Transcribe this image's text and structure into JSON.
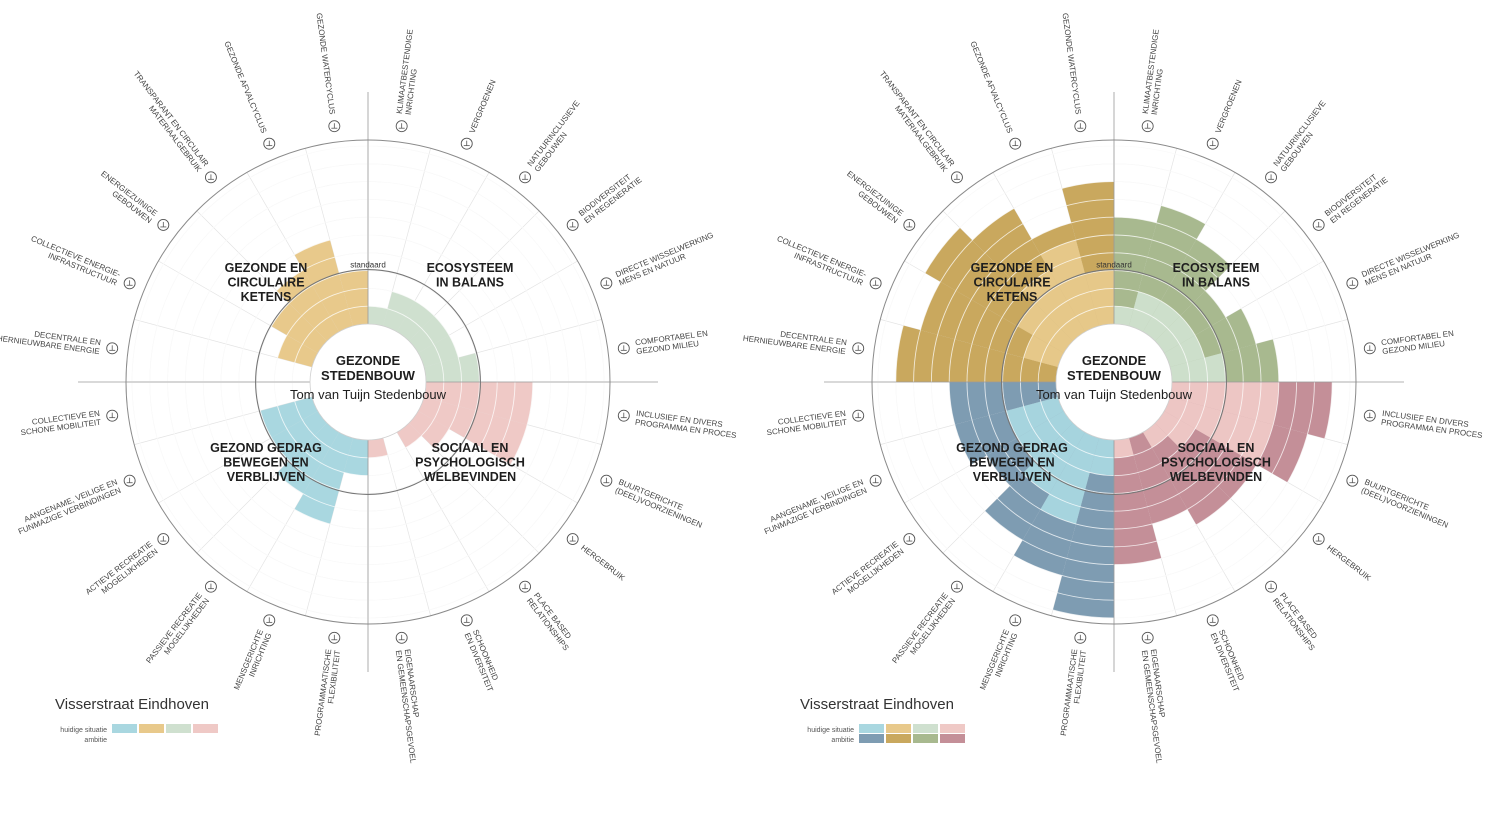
{
  "colors": {
    "blue_current": "#a9d7e0",
    "blue_ambition": "#7e9cb2",
    "gold_current": "#e8c98b",
    "gold_ambition": "#c9a85e",
    "sage_current": "#cfe0cf",
    "sage_ambition": "#a8b98f",
    "pink_current": "#efc9c6",
    "pink_ambition": "#c48f98",
    "grid": "#e4e4e4",
    "ring": "#777777"
  },
  "center": {
    "title_line1": "GEZONDE",
    "title_line2": "STEDENBOUW",
    "subtitle": "Tom van Tuijn Stedenbouw"
  },
  "standard_label": "standaard",
  "legend": {
    "title": "Visserstraat Eindhoven",
    "current_label": "huidige situatie",
    "ambition_label": "ambitie"
  },
  "sections": [
    {
      "key": "eco",
      "color": "sage",
      "lines": [
        "ECOSYSTEEM",
        "IN BALANS"
      ]
    },
    {
      "key": "soc",
      "color": "pink",
      "lines": [
        "SOCIAAL EN",
        "PSYCHOLOGISCH",
        "WELBEVINDEN"
      ]
    },
    {
      "key": "ged",
      "color": "blue",
      "lines": [
        "GEZOND GEDRAG",
        "BEWEGEN EN",
        "VERBLIJVEN"
      ]
    },
    {
      "key": "cir",
      "color": "gold",
      "lines": [
        "GEZONDE EN",
        "CIRCULAIRE",
        "KETENS"
      ]
    }
  ],
  "categories": [
    {
      "lines": [
        "KLIMAATBESTENDIGE",
        "INRICHTING"
      ],
      "icon": "thermometer-house-icon"
    },
    {
      "lines": [
        "VERGROENEN"
      ],
      "icon": "tree-icon"
    },
    {
      "lines": [
        "NATUURINCLUSIEVE",
        "GEBOUWEN"
      ],
      "icon": "green-building-icon"
    },
    {
      "lines": [
        "BIODIVERSITEIT",
        "EN REGENERATIE"
      ],
      "icon": "leaf-icon"
    },
    {
      "lines": [
        "DIRECTE WISSELWERKING",
        "MENS EN NATUUR"
      ],
      "icon": "hand-plant-icon"
    },
    {
      "lines": [
        "COMFORTABEL EN",
        "GEZOND MILIEU"
      ],
      "icon": "people-air-icon"
    },
    {
      "lines": [
        "INCLUSIEF EN DIVERS",
        "PROGRAMMA EN PROCES"
      ],
      "icon": "group-icon"
    },
    {
      "lines": [
        "BUURTGERICHTE",
        "(DEEL)VOORZIENINGEN"
      ],
      "icon": "shared-car-icon"
    },
    {
      "lines": [
        "HERGEBRUIK"
      ],
      "icon": "recycle-bin-icon"
    },
    {
      "lines": [
        "PLACE BASED",
        "RELATIONSHIPS"
      ],
      "icon": "location-heart-icon"
    },
    {
      "lines": [
        "SCHOONHEID",
        "EN DIVERSITEIT"
      ],
      "icon": "star-icon"
    },
    {
      "lines": [
        "EIGENAARSCHAP",
        "EN GEMEENSCHAPSGEVOEL"
      ],
      "icon": "house-people-icon"
    },
    {
      "lines": [
        "PROGRAMMAATISCHE",
        "FLEXIBILITEIT"
      ],
      "icon": "network-icon"
    },
    {
      "lines": [
        "MENSGERICHTE",
        "INRICHTING"
      ],
      "icon": "person-light-icon"
    },
    {
      "lines": [
        "PASSIEVE RECREATIE",
        "MOGELIJKHEDEN"
      ],
      "icon": "bench-icon"
    },
    {
      "lines": [
        "ACTIEVE RECREATIE",
        "MOGELIJKHEDEN"
      ],
      "icon": "racket-icon"
    },
    {
      "lines": [
        "AANGENAME, VEILIGE EN",
        "FUNMAZIGE VERBINDINGEN"
      ],
      "icon": "walking-person-icon"
    },
    {
      "lines": [
        "COLLECTIEVE EN",
        "SCHONE MOBILITEIT"
      ],
      "icon": "van-icon"
    },
    {
      "lines": [
        "DECENTRALE EN",
        "HERNIEUWBARE ENERGIE"
      ],
      "icon": "solar-panel-icon"
    },
    {
      "lines": [
        "COLLECTIEVE ENERGIE-",
        "INFRASTRUCTUUR"
      ],
      "icon": "energy-grid-icon"
    },
    {
      "lines": [
        "ENERGIEZUINIGE",
        "GEBOUWEN"
      ],
      "icon": "efficient-house-icon"
    },
    {
      "lines": [
        "TRANSPARANT EN CIRCULAIR",
        "MATERIAALGEBRUIK"
      ],
      "icon": "materials-icon"
    },
    {
      "lines": [
        "GEZONDE AFVALCYCLUS"
      ],
      "icon": "waste-bin-icon"
    },
    {
      "lines": [
        "GEZONDE WATERCYCLUS"
      ],
      "icon": "water-drop-icon"
    }
  ],
  "chart_data": [
    {
      "type": "radial-bar",
      "title": "Visserstraat Eindhoven",
      "scale": {
        "min": 0,
        "max": 10,
        "standard": 3
      },
      "series": [
        {
          "name": "huidige situatie",
          "values": [
            1,
            2,
            2,
            2,
            2,
            3,
            6,
            6,
            2,
            1,
            0,
            1,
            2,
            5,
            4,
            3,
            3,
            0,
            0,
            2,
            3,
            4,
            5,
            3
          ],
          "section": [
            "eco",
            "eco",
            "eco",
            "eco",
            "eco",
            "eco",
            "soc",
            "soc",
            "soc",
            "soc",
            "soc",
            "soc",
            "ged",
            "ged",
            "ged",
            "ged",
            "ged",
            "ged",
            "cir",
            "cir",
            "cir",
            "cir",
            "cir",
            "cir"
          ]
        }
      ]
    },
    {
      "type": "radial-bar",
      "title": "Visserstraat Eindhoven",
      "scale": {
        "min": 0,
        "max": 10,
        "standard": 3
      },
      "series": [
        {
          "name": "huidige situatie",
          "values": [
            1,
            2,
            2,
            2,
            2,
            3,
            6,
            6,
            2,
            1,
            0,
            1,
            2,
            5,
            4,
            3,
            3,
            0,
            0,
            2,
            3,
            4,
            5,
            3
          ]
        },
        {
          "name": "ambitie",
          "values": [
            6,
            7,
            6,
            4,
            5,
            6,
            9,
            8,
            6,
            6,
            5,
            7,
            10,
            8,
            7,
            5,
            6,
            6,
            9,
            8,
            9,
            8,
            6,
            8
          ]
        }
      ]
    }
  ]
}
